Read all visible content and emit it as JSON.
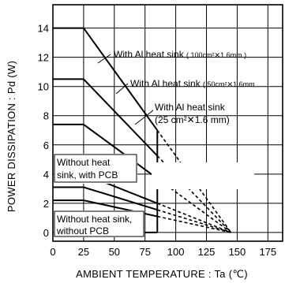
{
  "chart_data": {
    "type": "line",
    "xlabel": "AMBIENT  TEMPERATURE : Ta (℃)",
    "ylabel": "POWER DISSIPATION : Pd  (W)",
    "xlim": [
      0,
      187
    ],
    "ylim": [
      -0.6,
      15.6
    ],
    "x_ticks": [
      "0",
      "25",
      "50",
      "75",
      "100",
      "125",
      "150",
      "175"
    ],
    "y_ticks": [
      "0",
      "2",
      "4",
      "6",
      "8",
      "10",
      "12",
      "14"
    ],
    "grid": true,
    "series": [
      {
        "solid": [
          [
            0,
            14
          ],
          [
            25,
            14
          ],
          [
            85,
            7.0
          ]
        ],
        "dashed": [
          [
            85,
            7.0
          ],
          [
            145,
            0
          ]
        ]
      },
      {
        "solid": [
          [
            0,
            10.5
          ],
          [
            25,
            10.5
          ],
          [
            85,
            5.25
          ]
        ],
        "dashed": [
          [
            85,
            5.25
          ],
          [
            145,
            0
          ]
        ]
      },
      {
        "solid": [
          [
            0,
            7.4
          ],
          [
            25,
            7.4
          ],
          [
            85,
            3.7
          ]
        ],
        "dashed": [
          [
            85,
            3.7
          ],
          [
            145,
            0
          ]
        ]
      },
      {
        "solid": [
          [
            0,
            4.0
          ],
          [
            25,
            4.0
          ],
          [
            85,
            2.0
          ]
        ],
        "dashed": [
          [
            85,
            2.0
          ],
          [
            145,
            0
          ]
        ]
      },
      {
        "solid": [
          [
            0,
            3.1
          ],
          [
            25,
            3.1
          ],
          [
            85,
            1.55
          ]
        ],
        "dashed": [
          [
            85,
            1.55
          ],
          [
            145,
            0
          ]
        ]
      },
      {
        "solid": [
          [
            0,
            2.2
          ],
          [
            25,
            2.2
          ],
          [
            85,
            1.1
          ]
        ],
        "dashed": [
          [
            85,
            1.1
          ],
          [
            145,
            0
          ]
        ]
      }
    ],
    "annotations": [
      {
        "text": "With Al heat sink ( 100cm²✕1.6mm )",
        "size": "mixed"
      },
      {
        "text": "With Al heat sink ( 50cm²✕1.6mm",
        "size": "mixed"
      },
      {
        "text": "With Al heat sink",
        "size": "normal"
      },
      {
        "text": "(25 cm²✕1.6 mm)",
        "size": "normal"
      },
      {
        "text": "Without heat",
        "size": "normal"
      },
      {
        "text": "sink, with PCB",
        "size": "normal"
      },
      {
        "text": "Without heat sink,",
        "size": "normal"
      },
      {
        "text": "without PCB",
        "size": "normal"
      }
    ]
  }
}
